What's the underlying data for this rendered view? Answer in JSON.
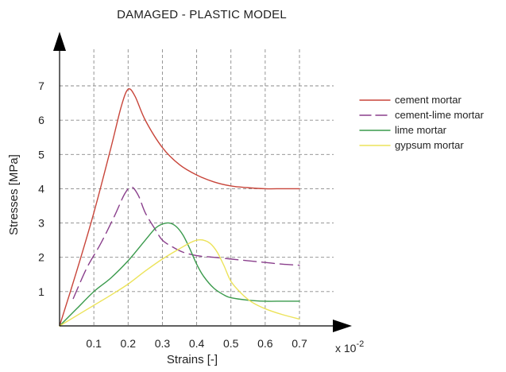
{
  "chart_data": {
    "type": "line",
    "title": "DAMAGED - PLASTIC MODEL",
    "xlabel": "Strains [-]",
    "ylabel": "Stresses [MPa]",
    "x_multiplier_label": "x 10",
    "x_multiplier_exponent": "-2",
    "xlim": [
      0,
      0.7
    ],
    "ylim": [
      0,
      7
    ],
    "xticks": [
      0.1,
      0.2,
      0.3,
      0.4,
      0.5,
      0.6,
      0.7
    ],
    "yticks": [
      1,
      2,
      3,
      4,
      5,
      6,
      7
    ],
    "xtick_labels": [
      "0.1",
      "0.2",
      "0.3",
      "0.4",
      "0.5",
      "0.6",
      "0.7"
    ],
    "ytick_labels": [
      "1",
      "2",
      "3",
      "4",
      "5",
      "6",
      "7"
    ],
    "grid": true,
    "legend_position": "right",
    "series": [
      {
        "name": "cement mortar",
        "color": "#c8453a",
        "dash": "solid",
        "x": [
          0,
          0.05,
          0.1,
          0.15,
          0.18,
          0.2,
          0.22,
          0.25,
          0.3,
          0.35,
          0.4,
          0.45,
          0.5,
          0.55,
          0.6,
          0.65,
          0.7
        ],
        "y": [
          0,
          1.6,
          3.3,
          5.2,
          6.4,
          6.9,
          6.7,
          6.0,
          5.2,
          4.7,
          4.4,
          4.2,
          4.08,
          4.03,
          4.0,
          4.0,
          4.0
        ]
      },
      {
        "name": "cement-lime mortar",
        "color": "#8a3f8c",
        "dash": "dashed",
        "x": [
          0.04,
          0.08,
          0.12,
          0.16,
          0.19,
          0.21,
          0.23,
          0.25,
          0.28,
          0.3,
          0.33,
          0.36,
          0.4,
          0.45,
          0.5,
          0.55,
          0.6,
          0.65,
          0.7
        ],
        "y": [
          0.8,
          1.7,
          2.4,
          3.2,
          3.85,
          4.05,
          3.8,
          3.3,
          2.8,
          2.5,
          2.3,
          2.15,
          2.05,
          2.0,
          1.95,
          1.9,
          1.85,
          1.8,
          1.77
        ]
      },
      {
        "name": "lime mortar",
        "color": "#3a9a4c",
        "dash": "solid",
        "x": [
          0,
          0.05,
          0.1,
          0.15,
          0.2,
          0.25,
          0.28,
          0.3,
          0.32,
          0.34,
          0.36,
          0.38,
          0.4,
          0.42,
          0.45,
          0.48,
          0.5,
          0.55,
          0.6,
          0.65,
          0.7
        ],
        "y": [
          0,
          0.5,
          1.0,
          1.4,
          1.9,
          2.5,
          2.85,
          2.97,
          3.0,
          2.9,
          2.65,
          2.25,
          1.8,
          1.45,
          1.1,
          0.9,
          0.82,
          0.75,
          0.72,
          0.72,
          0.72
        ]
      },
      {
        "name": "gypsum mortar",
        "color": "#ece35a",
        "dash": "solid",
        "x": [
          0,
          0.05,
          0.1,
          0.15,
          0.2,
          0.25,
          0.3,
          0.35,
          0.38,
          0.4,
          0.42,
          0.44,
          0.46,
          0.48,
          0.5,
          0.53,
          0.56,
          0.6,
          0.65,
          0.7
        ],
        "y": [
          0,
          0.3,
          0.6,
          0.9,
          1.22,
          1.6,
          1.95,
          2.25,
          2.42,
          2.5,
          2.5,
          2.4,
          2.15,
          1.75,
          1.3,
          0.95,
          0.7,
          0.5,
          0.33,
          0.2
        ]
      }
    ]
  }
}
